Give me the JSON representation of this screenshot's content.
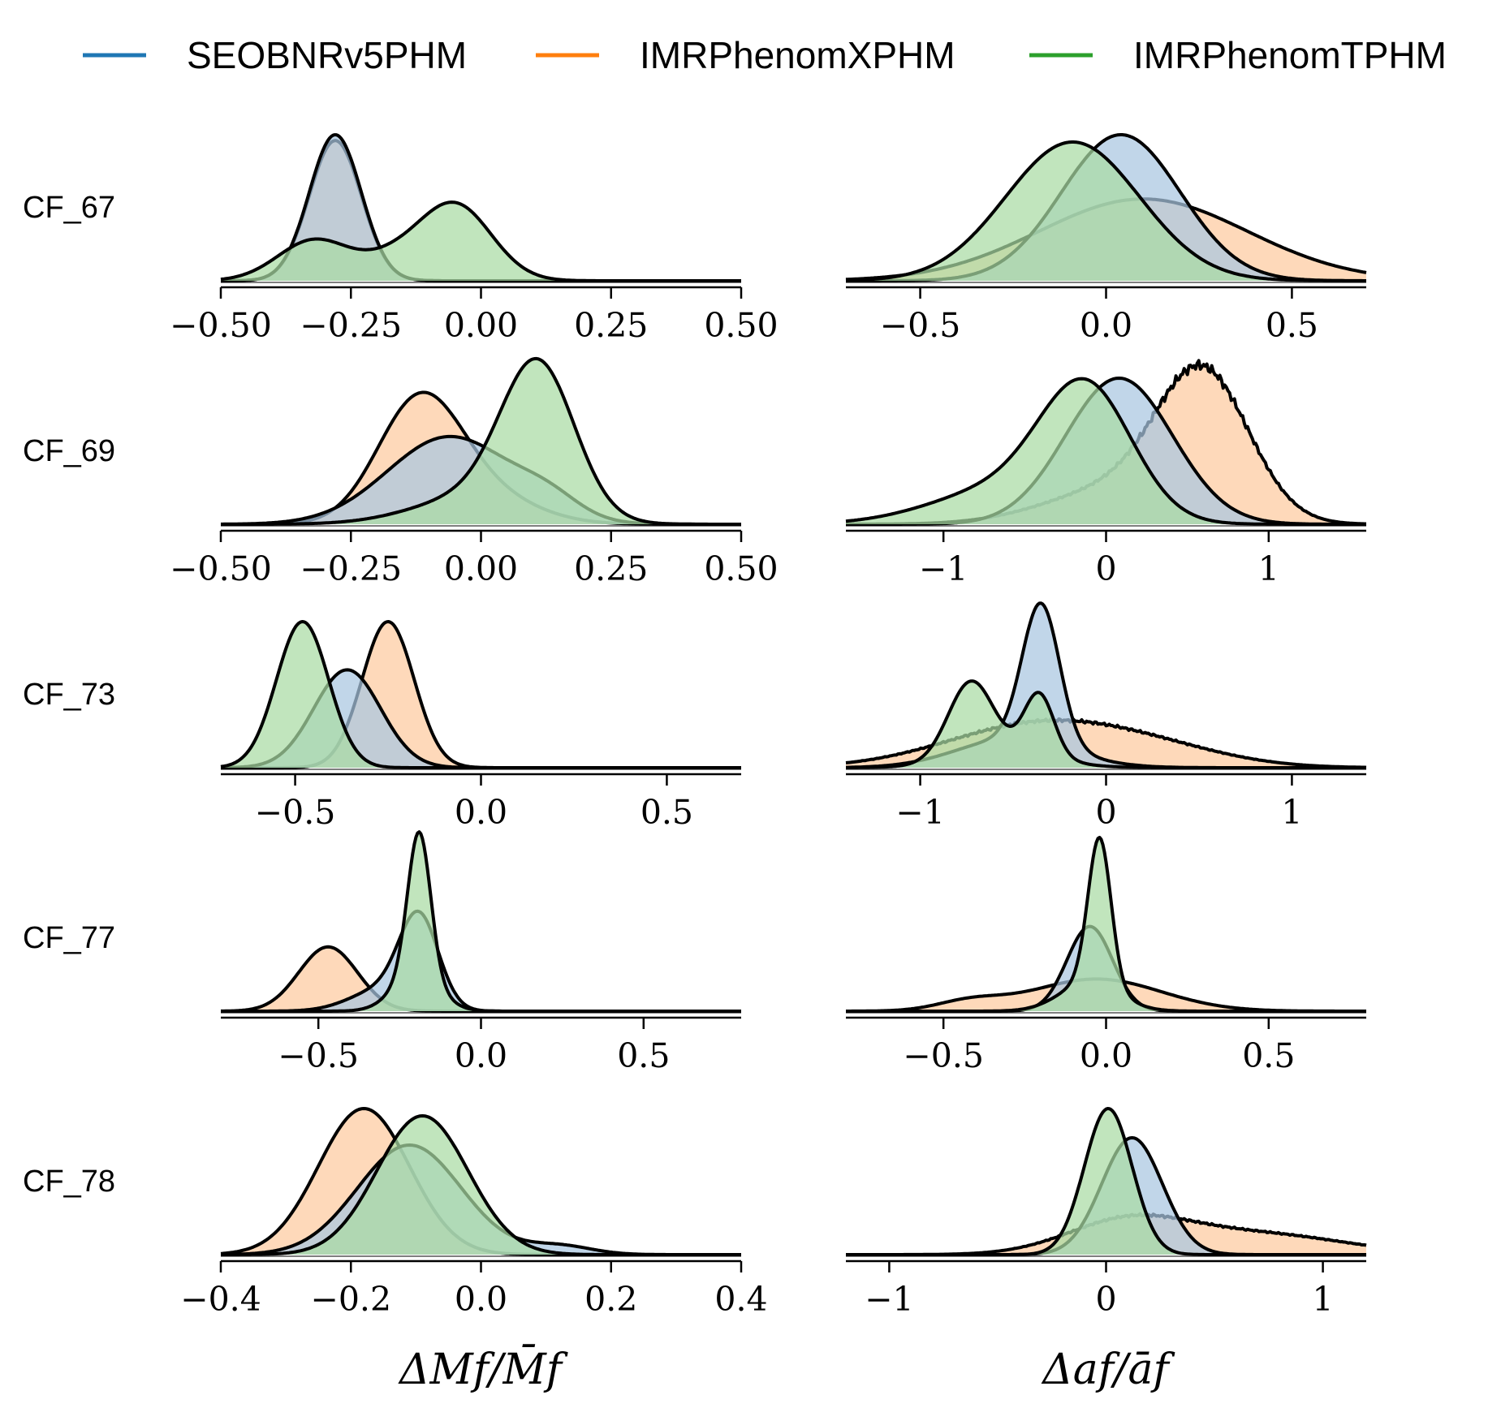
{
  "colors": {
    "SEOBNRv5PHM": "#1f77b4",
    "IMRPhenomXPHM": "#ff7f0e",
    "IMRPhenomTPHM": "#2ca02c",
    "fill_SEOBNRv5PHM": "#a9c6e0",
    "fill_IMRPhenomXPHM": "#fdcba0",
    "fill_IMRPhenomTPHM": "#a9dba3"
  },
  "chart_data": {
    "type": "area",
    "title": "",
    "legend": {
      "placement": "top",
      "entries": [
        "SEOBNRv5PHM",
        "IMRPhenomXPHM",
        "IMRPhenomTPHM"
      ]
    },
    "columns": [
      {
        "xlabel": "ΔMf/M̄f"
      },
      {
        "xlabel": "Δaf/āf"
      }
    ],
    "rows": [
      {
        "label": "CF_67",
        "panels": [
          {
            "xlim": [
              -0.5,
              0.5
            ],
            "ticks": [
              -0.5,
              -0.25,
              0.0,
              0.25,
              0.5
            ],
            "tick_labels": [
              "−0.50",
              "−0.25",
              "0.00",
              "0.25",
              "0.50"
            ],
            "series": [
              {
                "name": "SEOBNRv5PHM",
                "components": [
                  [
                    1.0,
                    -0.28,
                    0.05
                  ]
                ]
              },
              {
                "name": "IMRPhenomXPHM",
                "components": [
                  [
                    0.96,
                    -0.28,
                    0.05
                  ]
                ]
              },
              {
                "name": "IMRPhenomTPHM",
                "components": [
                  [
                    0.28,
                    -0.32,
                    0.07
                  ],
                  [
                    0.52,
                    -0.05,
                    0.07
                  ],
                  [
                    0.12,
                    -0.17,
                    0.06
                  ]
                ]
              }
            ]
          },
          {
            "xlim": [
              -0.7,
              0.7
            ],
            "ticks": [
              -0.5,
              0.0,
              0.5
            ],
            "tick_labels": [
              "−0.5",
              "0.0",
              "0.5"
            ],
            "series": [
              {
                "name": "SEOBNRv5PHM",
                "components": [
                  [
                    1.0,
                    0.04,
                    0.16
                  ]
                ]
              },
              {
                "name": "IMRPhenomXPHM",
                "components": [
                  [
                    0.56,
                    0.1,
                    0.28
                  ]
                ]
              },
              {
                "name": "IMRPhenomTPHM",
                "components": [
                  [
                    0.95,
                    -0.09,
                    0.18
                  ]
                ]
              }
            ]
          }
        ]
      },
      {
        "label": "CF_69",
        "panels": [
          {
            "xlim": [
              -0.5,
              0.5
            ],
            "ticks": [
              -0.5,
              -0.25,
              0.0,
              0.25,
              0.5
            ],
            "tick_labels": [
              "−0.50",
              "−0.25",
              "0.00",
              "0.25",
              "0.50"
            ],
            "series": [
              {
                "name": "SEOBNRv5PHM",
                "components": [
                  [
                    0.6,
                    -0.06,
                    0.12
                  ],
                  [
                    0.12,
                    0.13,
                    0.06
                  ]
                ]
              },
              {
                "name": "IMRPhenomXPHM",
                "components": [
                  [
                    0.8,
                    -0.12,
                    0.08
                  ],
                  [
                    0.2,
                    0.0,
                    0.1
                  ]
                ]
              },
              {
                "name": "IMRPhenomTPHM",
                "components": [
                  [
                    1.0,
                    0.11,
                    0.07
                  ],
                  [
                    0.2,
                    0.0,
                    0.12
                  ]
                ]
              }
            ]
          },
          {
            "xlim": [
              -1.6,
              1.6
            ],
            "ticks": [
              -1,
              0,
              1
            ],
            "tick_labels": [
              "−1",
              "0",
              "1"
            ],
            "series": [
              {
                "name": "SEOBNRv5PHM",
                "components": [
                  [
                    1.0,
                    0.08,
                    0.33
                  ]
                ]
              },
              {
                "name": "IMRPhenomXPHM",
                "components": [
                  [
                    0.95,
                    0.6,
                    0.28
                  ],
                  [
                    0.25,
                    0.1,
                    0.45
                  ]
                ],
                "noise": true
              },
              {
                "name": "IMRPhenomTPHM",
                "components": [
                  [
                    0.85,
                    -0.12,
                    0.28
                  ],
                  [
                    0.25,
                    -0.6,
                    0.45
                  ]
                ]
              }
            ]
          }
        ]
      },
      {
        "label": "CF_73",
        "panels": [
          {
            "xlim": [
              -0.7,
              0.7
            ],
            "ticks": [
              -0.5,
              0.0,
              0.5
            ],
            "tick_labels": [
              "−0.5",
              "0.0",
              "0.5"
            ],
            "series": [
              {
                "name": "SEOBNRv5PHM",
                "components": [
                  [
                    0.67,
                    -0.36,
                    0.09
                  ]
                ]
              },
              {
                "name": "IMRPhenomXPHM",
                "components": [
                  [
                    1.0,
                    -0.25,
                    0.07
                  ]
                ]
              },
              {
                "name": "IMRPhenomTPHM",
                "components": [
                  [
                    1.0,
                    -0.48,
                    0.07
                  ]
                ]
              }
            ]
          },
          {
            "xlim": [
              -1.4,
              1.4
            ],
            "ticks": [
              -1,
              0,
              1
            ],
            "tick_labels": [
              "−1",
              "0",
              "1"
            ],
            "series": [
              {
                "name": "SEOBNRv5PHM",
                "components": [
                  [
                    0.95,
                    -0.35,
                    0.1
                  ],
                  [
                    0.2,
                    -0.5,
                    0.3
                  ]
                ]
              },
              {
                "name": "IMRPhenomXPHM",
                "components": [
                  [
                    0.3,
                    -0.35,
                    0.5
                  ],
                  [
                    0.08,
                    0.3,
                    0.4
                  ]
                ],
                "noise": true
              },
              {
                "name": "IMRPhenomTPHM",
                "components": [
                  [
                    0.5,
                    -0.73,
                    0.12
                  ],
                  [
                    0.42,
                    -0.36,
                    0.08
                  ],
                  [
                    0.12,
                    -0.55,
                    0.25
                  ]
                ]
              }
            ]
          }
        ]
      },
      {
        "label": "CF_77",
        "panels": [
          {
            "xlim": [
              -0.8,
              0.8
            ],
            "ticks": [
              -0.5,
              0.0,
              0.5
            ],
            "tick_labels": [
              "−0.5",
              "0.0",
              "0.5"
            ],
            "series": [
              {
                "name": "SEOBNRv5PHM",
                "components": [
                  [
                    0.6,
                    -0.19,
                    0.06
                  ],
                  [
                    0.15,
                    -0.3,
                    0.1
                  ]
                ]
              },
              {
                "name": "IMRPhenomXPHM",
                "components": [
                  [
                    0.44,
                    -0.47,
                    0.09
                  ]
                ]
              },
              {
                "name": "IMRPhenomTPHM",
                "components": [
                  [
                    0.98,
                    -0.19,
                    0.035
                  ],
                  [
                    0.25,
                    -0.2,
                    0.07
                  ]
                ]
              }
            ]
          },
          {
            "xlim": [
              -0.8,
              0.8
            ],
            "ticks": [
              -0.5,
              0.0,
              0.5
            ],
            "tick_labels": [
              "−0.5",
              "0.0",
              "0.5"
            ],
            "series": [
              {
                "name": "SEOBNRv5PHM",
                "components": [
                  [
                    0.58,
                    -0.05,
                    0.07
                  ]
                ]
              },
              {
                "name": "IMRPhenomXPHM",
                "components": [
                  [
                    0.22,
                    -0.03,
                    0.2
                  ],
                  [
                    0.06,
                    -0.42,
                    0.1
                  ]
                ]
              },
              {
                "name": "IMRPhenomTPHM",
                "components": [
                  [
                    1.0,
                    -0.02,
                    0.035
                  ],
                  [
                    0.2,
                    -0.05,
                    0.09
                  ]
                ]
              }
            ]
          }
        ]
      },
      {
        "label": "CF_78",
        "panels": [
          {
            "xlim": [
              -0.4,
              0.4
            ],
            "ticks": [
              -0.4,
              -0.2,
              0.0,
              0.2,
              0.4
            ],
            "tick_labels": [
              "−0.4",
              "−0.2",
              "0.0",
              "0.2",
              "0.4"
            ],
            "series": [
              {
                "name": "SEOBNRv5PHM",
                "components": [
                  [
                    0.75,
                    -0.11,
                    0.08
                  ],
                  [
                    0.06,
                    0.12,
                    0.05
                  ]
                ]
              },
              {
                "name": "IMRPhenomXPHM",
                "components": [
                  [
                    1.0,
                    -0.18,
                    0.07
                  ]
                ]
              },
              {
                "name": "IMRPhenomTPHM",
                "components": [
                  [
                    0.95,
                    -0.09,
                    0.07
                  ]
                ]
              }
            ]
          },
          {
            "xlim": [
              -1.2,
              1.2
            ],
            "ticks": [
              -1,
              0,
              1
            ],
            "tick_labels": [
              "−1",
              "0",
              "1"
            ],
            "series": [
              {
                "name": "SEOBNRv5PHM",
                "components": [
                  [
                    0.8,
                    0.12,
                    0.14
                  ]
                ]
              },
              {
                "name": "IMRPhenomXPHM",
                "components": [
                  [
                    0.22,
                    0.1,
                    0.28
                  ],
                  [
                    0.14,
                    0.7,
                    0.4
                  ]
                ],
                "noise": true
              },
              {
                "name": "IMRPhenomTPHM",
                "components": [
                  [
                    1.0,
                    0.01,
                    0.11
                  ]
                ]
              }
            ]
          }
        ]
      }
    ]
  }
}
